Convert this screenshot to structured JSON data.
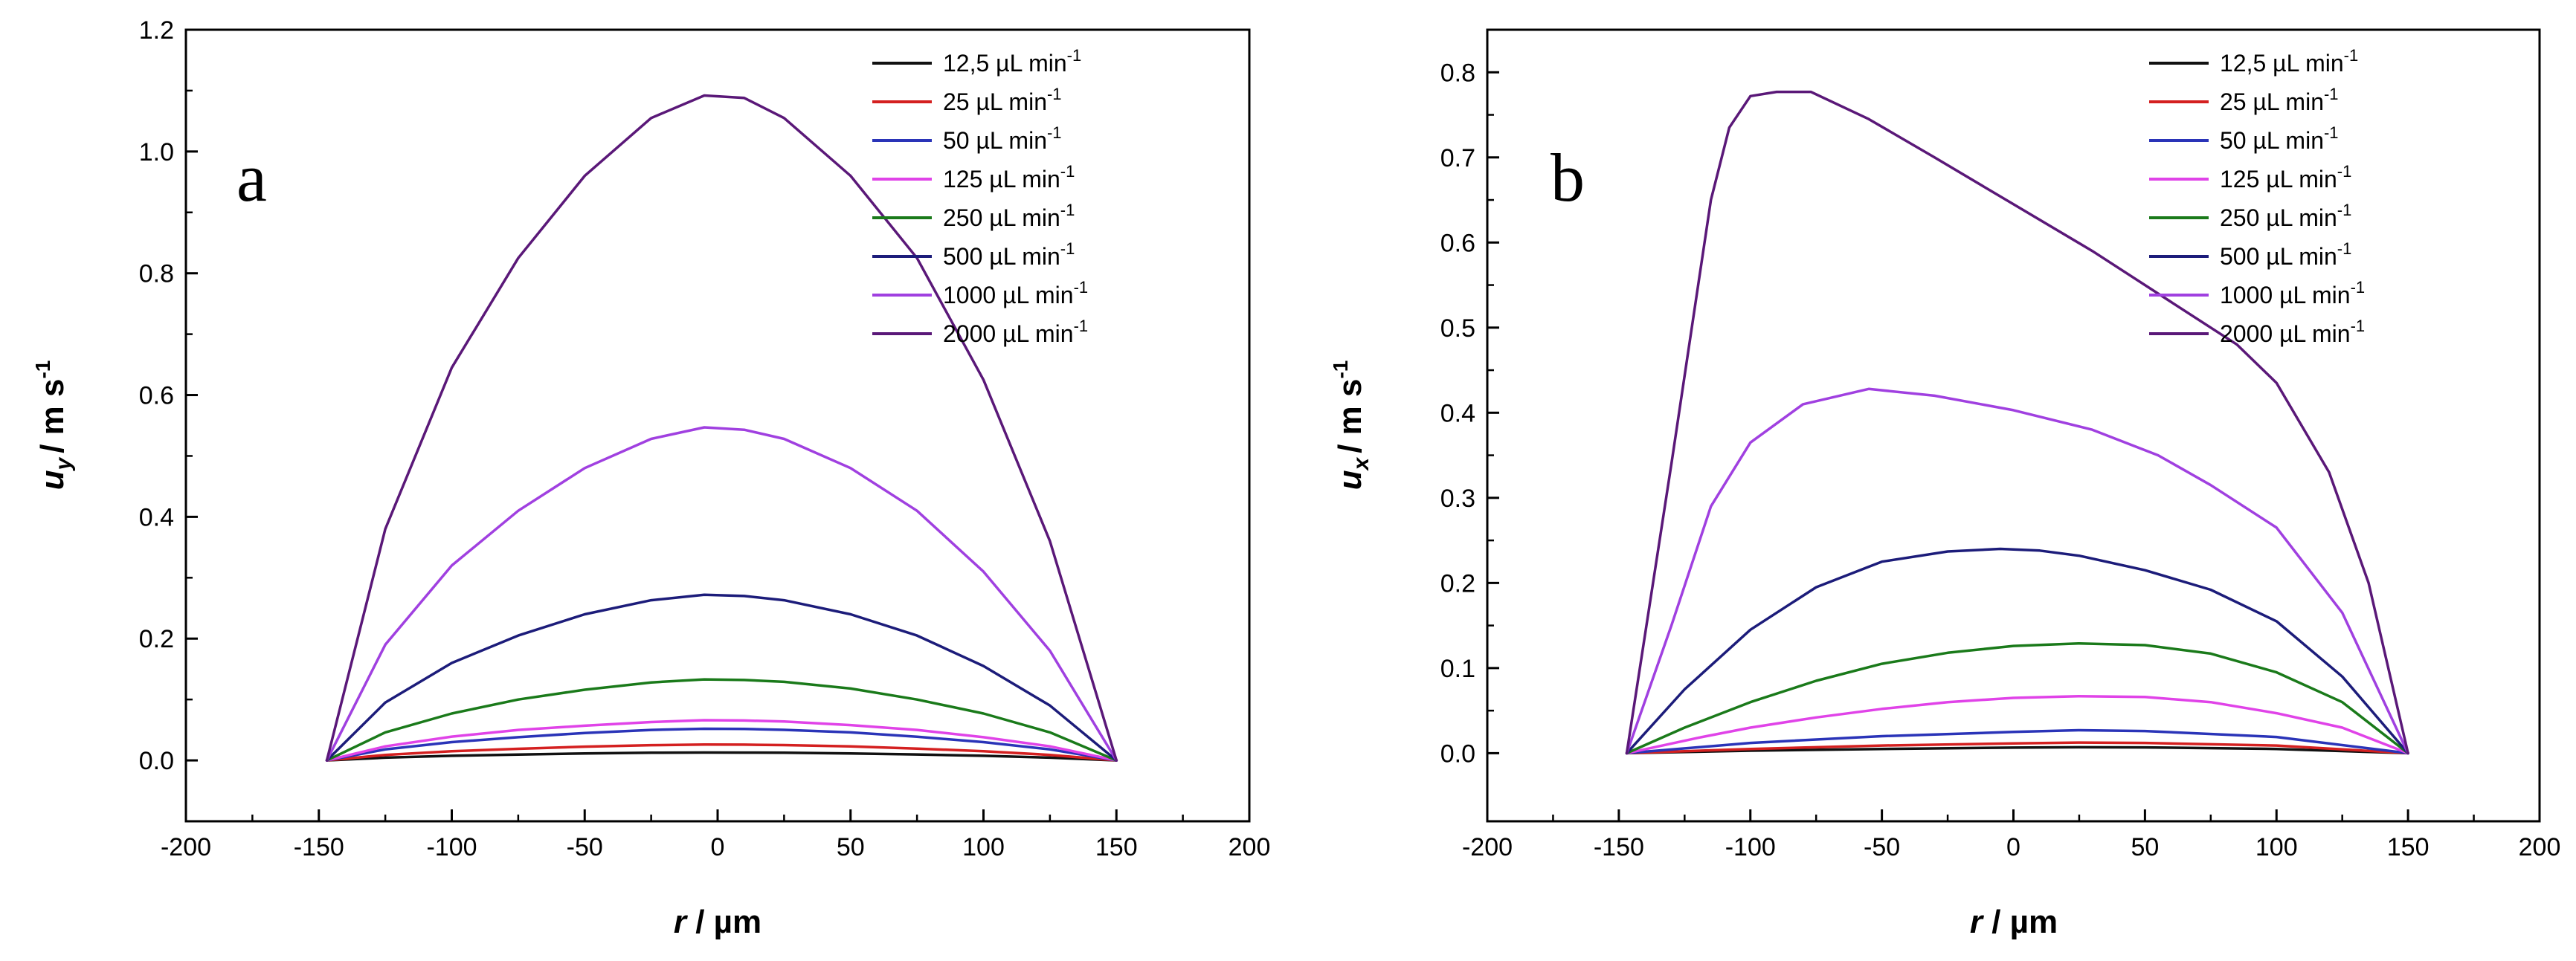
{
  "chart_data": [
    {
      "id": "a",
      "type": "line",
      "panel_label": "a",
      "xlabel": "r / µm",
      "ylabel": "u_y / m s^-1",
      "ylabel_var": "u",
      "ylabel_sub": "y",
      "ylabel_unit": "/ m s",
      "ylabel_sup": "-1",
      "xlim": [
        -200,
        200
      ],
      "ylim": [
        -0.1,
        1.2
      ],
      "xticks": [
        "-200",
        "-150",
        "-100",
        "-50",
        "0",
        "50",
        "100",
        "150",
        "200"
      ],
      "xtick_values": [
        -200,
        -150,
        -100,
        -50,
        0,
        50,
        100,
        150,
        200
      ],
      "yticks": [
        "0.0",
        "0.2",
        "0.4",
        "0.6",
        "0.8",
        "1.0",
        "1.2"
      ],
      "ytick_values": [
        0,
        0.2,
        0.4,
        0.6,
        0.8,
        1.0,
        1.2
      ],
      "legend_position": "top-right",
      "x": [
        -147,
        -125,
        -100,
        -75,
        -50,
        -25,
        -5,
        10,
        25,
        50,
        75,
        100,
        125,
        150
      ],
      "series": [
        {
          "name": "12,5 µL min",
          "values": [
            0,
            0.0045,
            0.0075,
            0.0096,
            0.0114,
            0.0126,
            0.0129,
            0.0128,
            0.0125,
            0.0115,
            0.0097,
            0.0075,
            0.0045,
            0
          ]
        },
        {
          "name": "25 µL min",
          "values": [
            0,
            0.009,
            0.015,
            0.019,
            0.0225,
            0.025,
            0.026,
            0.0258,
            0.0251,
            0.023,
            0.0194,
            0.015,
            0.009,
            0
          ]
        },
        {
          "name": "50 µL min",
          "values": [
            0,
            0.018,
            0.03,
            0.038,
            0.045,
            0.05,
            0.052,
            0.0516,
            0.0502,
            0.046,
            0.0388,
            0.03,
            0.018,
            0
          ]
        },
        {
          "name": "125 µL min",
          "values": [
            0,
            0.023,
            0.039,
            0.05,
            0.057,
            0.063,
            0.066,
            0.0655,
            0.0638,
            0.058,
            0.05,
            0.038,
            0.023,
            0
          ]
        },
        {
          "name": "250 µL min",
          "values": [
            0,
            0.046,
            0.077,
            0.1,
            0.116,
            0.128,
            0.133,
            0.132,
            0.129,
            0.118,
            0.1,
            0.077,
            0.046,
            0
          ]
        },
        {
          "name": "500 µL min",
          "values": [
            0,
            0.095,
            0.16,
            0.205,
            0.24,
            0.263,
            0.272,
            0.27,
            0.263,
            0.24,
            0.205,
            0.155,
            0.09,
            0
          ]
        },
        {
          "name": "1000 µL min",
          "values": [
            0,
            0.19,
            0.32,
            0.41,
            0.48,
            0.528,
            0.547,
            0.543,
            0.528,
            0.48,
            0.41,
            0.31,
            0.18,
            0
          ]
        },
        {
          "name": "2000 µL min",
          "values": [
            0,
            0.38,
            0.645,
            0.825,
            0.96,
            1.055,
            1.092,
            1.088,
            1.055,
            0.96,
            0.825,
            0.625,
            0.36,
            0
          ]
        }
      ]
    },
    {
      "id": "b",
      "type": "line",
      "panel_label": "b",
      "xlabel": "r / µm",
      "ylabel": "u_x / m s^-1",
      "ylabel_var": "u",
      "ylabel_sub": "x",
      "ylabel_unit": "/ m s",
      "ylabel_sup": "-1",
      "xlim": [
        -200,
        200
      ],
      "ylim": [
        -0.08,
        0.85
      ],
      "xticks": [
        "-200",
        "-150",
        "-100",
        "-50",
        "0",
        "50",
        "100",
        "150",
        "200"
      ],
      "xtick_values": [
        -200,
        -150,
        -100,
        -50,
        0,
        50,
        100,
        150,
        200
      ],
      "yticks": [
        "0.0",
        "0.1",
        "0.2",
        "0.3",
        "0.4",
        "0.5",
        "0.6",
        "0.7",
        "0.8"
      ],
      "ytick_values": [
        0,
        0.1,
        0.2,
        0.3,
        0.4,
        0.5,
        0.6,
        0.7,
        0.8
      ],
      "legend_position": "top-right",
      "series": [
        {
          "name": "12,5 µL min",
          "x": [
            -147,
            -100,
            -50,
            0,
            25,
            50,
            100,
            150
          ],
          "values": [
            0,
            0.003,
            0.005,
            0.0065,
            0.007,
            0.0068,
            0.005,
            0
          ]
        },
        {
          "name": "25 µL min",
          "x": [
            -147,
            -100,
            -50,
            0,
            25,
            50,
            100,
            150
          ],
          "values": [
            0,
            0.005,
            0.009,
            0.0115,
            0.0125,
            0.012,
            0.009,
            0
          ]
        },
        {
          "name": "50 µL min",
          "x": [
            -147,
            -100,
            -50,
            0,
            25,
            50,
            100,
            150
          ],
          "values": [
            0,
            0.012,
            0.02,
            0.025,
            0.027,
            0.026,
            0.019,
            0
          ]
        },
        {
          "name": "125 µL min",
          "x": [
            -147,
            -120,
            -100,
            -75,
            -50,
            -25,
            0,
            25,
            50,
            75,
            100,
            125,
            150
          ],
          "values": [
            0,
            0.018,
            0.03,
            0.042,
            0.052,
            0.06,
            0.065,
            0.067,
            0.066,
            0.06,
            0.047,
            0.03,
            0
          ]
        },
        {
          "name": "250 µL min",
          "x": [
            -147,
            -125,
            -100,
            -75,
            -50,
            -25,
            0,
            25,
            50,
            75,
            100,
            125,
            150
          ],
          "values": [
            0,
            0.03,
            0.06,
            0.085,
            0.105,
            0.118,
            0.126,
            0.129,
            0.127,
            0.117,
            0.095,
            0.06,
            0
          ]
        },
        {
          "name": "500 µL min",
          "x": [
            -147,
            -125,
            -100,
            -75,
            -50,
            -25,
            -5,
            10,
            25,
            50,
            75,
            100,
            125,
            150
          ],
          "values": [
            0,
            0.075,
            0.145,
            0.195,
            0.225,
            0.237,
            0.24,
            0.238,
            0.232,
            0.215,
            0.192,
            0.155,
            0.09,
            0
          ]
        },
        {
          "name": "1000 µL min",
          "x": [
            -147,
            -130,
            -115,
            -100,
            -80,
            -55,
            -30,
            0,
            30,
            55,
            75,
            100,
            125,
            150
          ],
          "values": [
            0,
            0.15,
            0.29,
            0.365,
            0.41,
            0.428,
            0.42,
            0.403,
            0.38,
            0.35,
            0.315,
            0.265,
            0.165,
            0
          ]
        },
        {
          "name": "2000 µL min",
          "x": [
            -147,
            -130,
            -115,
            -108,
            -100,
            -90,
            -77,
            -55,
            -30,
            0,
            30,
            60,
            85,
            100,
            120,
            135,
            150
          ],
          "values": [
            0,
            0.34,
            0.65,
            0.735,
            0.772,
            0.777,
            0.777,
            0.745,
            0.7,
            0.645,
            0.59,
            0.53,
            0.48,
            0.435,
            0.33,
            0.2,
            0
          ]
        }
      ]
    }
  ],
  "legend": {
    "unit_sup": "-1",
    "colors": [
      "#111111",
      "#d42020",
      "#2a34b8",
      "#e043e8",
      "#1a7a1a",
      "#1c1c7a",
      "#a040e0",
      "#5a1878"
    ]
  }
}
